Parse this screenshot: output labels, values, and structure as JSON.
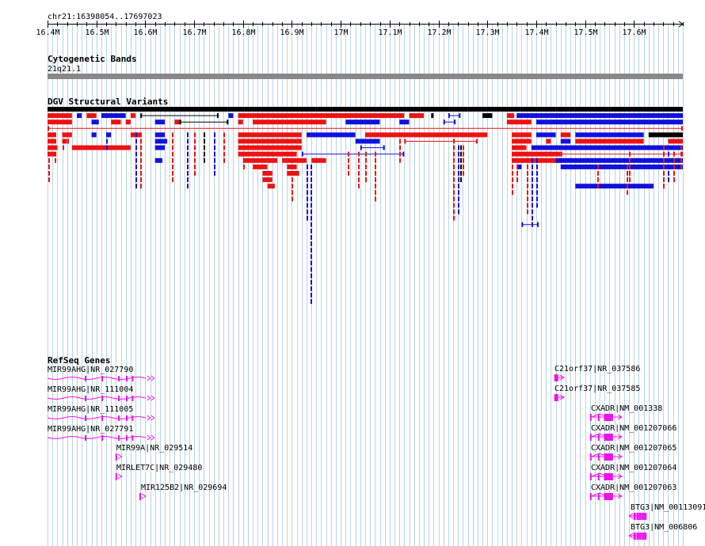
{
  "locus": "chr21:16398054..17697023",
  "ruler": {
    "start": 16.4,
    "end": 17.7,
    "ticks": [
      {
        "v": 16.4,
        "label": "16.4M"
      },
      {
        "v": 16.5,
        "label": "16.5M"
      },
      {
        "v": 16.6,
        "label": "16.6M"
      },
      {
        "v": 16.7,
        "label": "16.7M"
      },
      {
        "v": 16.8,
        "label": "16.8M"
      },
      {
        "v": 16.9,
        "label": "16.9M"
      },
      {
        "v": 17.0,
        "label": "17M"
      },
      {
        "v": 17.1,
        "label": "17.1M"
      },
      {
        "v": 17.2,
        "label": "17.2M"
      },
      {
        "v": 17.3,
        "label": "17.3M"
      },
      {
        "v": 17.4,
        "label": "17.4M"
      },
      {
        "v": 17.5,
        "label": "17.5M"
      },
      {
        "v": 17.6,
        "label": "17.6M"
      }
    ]
  },
  "tracks": {
    "cytoband": {
      "title": "Cytogenetic Bands",
      "band": "21q21.1"
    },
    "dgv": {
      "title": "DGV Structural Variants"
    },
    "refseq": {
      "title": "RefSeq Genes"
    }
  },
  "colors": {
    "loss": "#ee1111",
    "gain": "#1111dd",
    "other": "#000000",
    "gene": "#ee11ee",
    "grid": "#b8d4e4"
  },
  "genes": [
    {
      "label": "MIR99AHG|NR_027790",
      "start": 16.4,
      "end": 16.62,
      "kind": "wavy"
    },
    {
      "label": "MIR99AHG|NR_111004",
      "start": 16.4,
      "end": 16.62,
      "kind": "wavy"
    },
    {
      "label": "MIR99AHG|NR_111005",
      "start": 16.4,
      "end": 16.62,
      "kind": "wavy"
    },
    {
      "label": "MIR99AHG|NR_027791",
      "start": 16.4,
      "end": 16.62,
      "kind": "wavy"
    },
    {
      "label": "MIR99A|NR_029514",
      "start": 16.539,
      "end": 16.548,
      "kind": "small"
    },
    {
      "label": "MIRLET7C|NR_029480",
      "start": 16.539,
      "end": 16.548,
      "kind": "small"
    },
    {
      "label": "MIR125B2|NR_029694",
      "start": 16.588,
      "end": 16.597,
      "kind": "small"
    },
    {
      "label": "C21orf37|NR_037586",
      "start": 17.437,
      "end": 17.457,
      "kind": "short"
    },
    {
      "label": "C21orf37|NR_037585",
      "start": 17.437,
      "end": 17.457,
      "kind": "short"
    },
    {
      "label": "CXADR|NM_001338",
      "start": 17.51,
      "end": 17.575,
      "kind": "exons"
    },
    {
      "label": "CXADR|NM_001207066",
      "start": 17.51,
      "end": 17.575,
      "kind": "exons"
    },
    {
      "label": "CXADR|NM_001207065",
      "start": 17.51,
      "end": 17.575,
      "kind": "exons"
    },
    {
      "label": "CXADR|NM_001207064",
      "start": 17.51,
      "end": 17.575,
      "kind": "exons"
    },
    {
      "label": "CXADR|NM_001207063",
      "start": 17.51,
      "end": 17.575,
      "kind": "exons"
    },
    {
      "label": "BTG3|NM_00113091",
      "start": 17.59,
      "end": 17.626,
      "kind": "rev"
    },
    {
      "label": "BTG3|NM_006806",
      "start": 17.59,
      "end": 17.626,
      "kind": "rev"
    }
  ],
  "variants": [
    {
      "s": 16.4,
      "e": 17.7,
      "r": 0,
      "c": "other"
    },
    {
      "s": 16.4,
      "e": 16.45,
      "r": 1,
      "c": "loss"
    },
    {
      "s": 16.46,
      "e": 16.47,
      "r": 1,
      "c": "gain"
    },
    {
      "s": 16.48,
      "e": 16.5,
      "r": 1,
      "c": "loss"
    },
    {
      "s": 16.51,
      "e": 16.56,
      "r": 1,
      "c": "gain"
    },
    {
      "s": 16.57,
      "e": 16.58,
      "r": 1,
      "c": "loss"
    },
    {
      "s": 16.59,
      "e": 16.75,
      "r": 1,
      "c": "other",
      "thin": 1
    },
    {
      "s": 16.77,
      "e": 16.78,
      "r": 1,
      "c": "gain"
    },
    {
      "s": 16.79,
      "e": 17.13,
      "r": 1,
      "c": "loss"
    },
    {
      "s": 17.14,
      "e": 17.17,
      "r": 1,
      "c": "loss"
    },
    {
      "s": 17.185,
      "e": 17.19,
      "r": 1,
      "c": "other"
    },
    {
      "s": 17.22,
      "e": 17.245,
      "r": 1,
      "c": "gain",
      "thin": 1
    },
    {
      "s": 17.29,
      "e": 17.31,
      "r": 1,
      "c": "other"
    },
    {
      "s": 17.34,
      "e": 17.355,
      "r": 1,
      "c": "loss"
    },
    {
      "s": 17.36,
      "e": 17.43,
      "r": 1,
      "c": "gain"
    },
    {
      "s": 17.43,
      "e": 17.7,
      "r": 1,
      "c": "gain"
    },
    {
      "s": 16.4,
      "e": 16.45,
      "r": 2,
      "c": "loss"
    },
    {
      "s": 16.49,
      "e": 16.505,
      "r": 2,
      "c": "gain"
    },
    {
      "s": 16.53,
      "e": 16.55,
      "r": 2,
      "c": "loss"
    },
    {
      "s": 16.56,
      "e": 16.57,
      "r": 2,
      "c": "loss"
    },
    {
      "s": 16.62,
      "e": 16.64,
      "r": 2,
      "c": "gain"
    },
    {
      "s": 16.66,
      "e": 16.67,
      "r": 2,
      "c": "loss"
    },
    {
      "s": 16.67,
      "e": 16.77,
      "r": 2,
      "c": "other",
      "thin": 1
    },
    {
      "s": 16.79,
      "e": 16.8,
      "r": 2,
      "c": "loss"
    },
    {
      "s": 16.82,
      "e": 16.97,
      "r": 2,
      "c": "loss"
    },
    {
      "s": 17.01,
      "e": 17.08,
      "r": 2,
      "c": "gain"
    },
    {
      "s": 17.12,
      "e": 17.14,
      "r": 2,
      "c": "gain"
    },
    {
      "s": 17.21,
      "e": 17.235,
      "r": 2,
      "c": "gain",
      "thin": 1
    },
    {
      "s": 17.34,
      "e": 17.39,
      "r": 2,
      "c": "loss"
    },
    {
      "s": 17.4,
      "e": 17.7,
      "r": 2,
      "c": "gain"
    },
    {
      "s": 16.4,
      "e": 17.7,
      "r": 3,
      "c": "loss",
      "thin": 1
    },
    {
      "s": 16.4,
      "e": 16.415,
      "r": 4,
      "c": "loss"
    },
    {
      "s": 16.43,
      "e": 16.45,
      "r": 4,
      "c": "loss"
    },
    {
      "s": 16.49,
      "e": 16.5,
      "r": 4,
      "c": "gain"
    },
    {
      "s": 16.52,
      "e": 16.53,
      "r": 4,
      "c": "gain"
    },
    {
      "s": 16.57,
      "e": 16.59,
      "r": 4,
      "c": "loss"
    },
    {
      "s": 16.62,
      "e": 16.64,
      "r": 4,
      "c": "gain"
    },
    {
      "s": 16.79,
      "e": 16.92,
      "r": 4,
      "c": "loss"
    },
    {
      "s": 16.93,
      "e": 17.03,
      "r": 4,
      "c": "gain"
    },
    {
      "s": 17.05,
      "e": 17.3,
      "r": 4,
      "c": "loss"
    },
    {
      "s": 17.35,
      "e": 17.39,
      "r": 4,
      "c": "loss"
    },
    {
      "s": 17.4,
      "e": 17.44,
      "r": 4,
      "c": "gain"
    },
    {
      "s": 17.45,
      "e": 17.47,
      "r": 4,
      "c": "loss"
    },
    {
      "s": 17.48,
      "e": 17.62,
      "r": 4,
      "c": "gain"
    },
    {
      "s": 17.63,
      "e": 17.7,
      "r": 4,
      "c": "other"
    },
    {
      "s": 16.4,
      "e": 16.415,
      "r": 5,
      "c": "loss"
    },
    {
      "s": 16.43,
      "e": 16.44,
      "r": 5,
      "c": "loss"
    },
    {
      "s": 16.62,
      "e": 16.645,
      "r": 5,
      "c": "gain"
    },
    {
      "s": 16.79,
      "e": 16.92,
      "r": 5,
      "c": "loss"
    },
    {
      "s": 17.03,
      "e": 17.08,
      "r": 5,
      "c": "gain"
    },
    {
      "s": 17.13,
      "e": 17.28,
      "r": 5,
      "c": "loss",
      "thin": 1
    },
    {
      "s": 17.35,
      "e": 17.39,
      "r": 5,
      "c": "loss"
    },
    {
      "s": 17.42,
      "e": 17.43,
      "r": 5,
      "c": "loss"
    },
    {
      "s": 17.45,
      "e": 17.47,
      "r": 5,
      "c": "gain"
    },
    {
      "s": 17.48,
      "e": 17.62,
      "r": 5,
      "c": "loss"
    },
    {
      "s": 17.67,
      "e": 17.7,
      "r": 5,
      "c": "loss"
    },
    {
      "s": 16.4,
      "e": 16.42,
      "r": 6,
      "c": "loss"
    },
    {
      "s": 16.45,
      "e": 16.57,
      "r": 6,
      "c": "loss"
    },
    {
      "s": 16.62,
      "e": 16.64,
      "r": 6,
      "c": "gain"
    },
    {
      "s": 16.79,
      "e": 16.92,
      "r": 6,
      "c": "loss"
    },
    {
      "s": 17.04,
      "e": 17.09,
      "r": 6,
      "c": "gain",
      "thin": 1
    },
    {
      "s": 17.35,
      "e": 17.38,
      "r": 6,
      "c": "loss"
    },
    {
      "s": 17.39,
      "e": 17.7,
      "r": 6,
      "c": "gain"
    },
    {
      "s": 16.4,
      "e": 16.415,
      "r": 7,
      "c": "loss"
    },
    {
      "s": 16.79,
      "e": 16.91,
      "r": 7,
      "c": "loss"
    },
    {
      "s": 16.92,
      "e": 17.13,
      "r": 7,
      "c": "gain",
      "thin": 1
    },
    {
      "s": 17.35,
      "e": 17.45,
      "r": 7,
      "c": "loss"
    },
    {
      "s": 17.45,
      "e": 17.7,
      "r": 7,
      "c": "loss",
      "thin": 1
    },
    {
      "s": 16.62,
      "e": 16.635,
      "r": 8,
      "c": "gain"
    },
    {
      "s": 16.8,
      "e": 16.87,
      "r": 8,
      "c": "loss"
    },
    {
      "s": 16.88,
      "e": 16.93,
      "r": 8,
      "c": "loss"
    },
    {
      "s": 16.94,
      "e": 16.97,
      "r": 8,
      "c": "loss"
    },
    {
      "s": 17.35,
      "e": 17.45,
      "r": 8,
      "c": "loss"
    },
    {
      "s": 17.44,
      "e": 17.7,
      "r": 8,
      "c": "gain"
    },
    {
      "s": 16.82,
      "e": 16.85,
      "r": 9,
      "c": "loss"
    },
    {
      "s": 16.89,
      "e": 16.91,
      "r": 9,
      "c": "loss"
    },
    {
      "s": 17.36,
      "e": 17.37,
      "r": 9,
      "c": "gain"
    },
    {
      "s": 17.45,
      "e": 17.7,
      "r": 9,
      "c": "gain"
    },
    {
      "s": 16.84,
      "e": 16.86,
      "r": 10,
      "c": "loss"
    },
    {
      "s": 16.89,
      "e": 16.915,
      "r": 10,
      "c": "loss"
    },
    {
      "s": 16.84,
      "e": 16.86,
      "r": 11,
      "c": "loss"
    },
    {
      "s": 16.85,
      "e": 16.865,
      "r": 12,
      "c": "loss"
    },
    {
      "s": 17.48,
      "e": 17.64,
      "r": 12,
      "c": "gain"
    },
    {
      "s": 17.37,
      "e": 17.405,
      "r": 18,
      "c": "gain",
      "thin": 1
    }
  ],
  "stalks": [
    {
      "v": 16.402,
      "r0": 4,
      "r1": 11,
      "c": "loss"
    },
    {
      "v": 16.415,
      "r0": 4,
      "r1": 8,
      "c": "loss"
    },
    {
      "v": 16.43,
      "r0": 4,
      "r1": 6,
      "c": "loss"
    },
    {
      "v": 16.44,
      "r0": 4,
      "r1": 5,
      "c": "loss"
    },
    {
      "v": 16.58,
      "r0": 4,
      "r1": 12,
      "c": "gain"
    },
    {
      "v": 16.59,
      "r0": 4,
      "r1": 12,
      "c": "loss"
    },
    {
      "v": 16.52,
      "r0": 4,
      "r1": 6,
      "c": "gain"
    },
    {
      "v": 16.655,
      "r0": 4,
      "r1": 11,
      "c": "loss"
    },
    {
      "v": 16.685,
      "r0": 4,
      "r1": 12,
      "c": "gain"
    },
    {
      "v": 16.7,
      "r0": 4,
      "r1": 10,
      "c": "loss"
    },
    {
      "v": 16.72,
      "r0": 4,
      "r1": 8,
      "c": "other"
    },
    {
      "v": 16.74,
      "r0": 4,
      "r1": 10,
      "c": "gain"
    },
    {
      "v": 16.76,
      "r0": 4,
      "r1": 8,
      "c": "loss"
    },
    {
      "v": 16.8,
      "r0": 4,
      "r1": 9,
      "c": "loss"
    },
    {
      "v": 16.9,
      "r0": 8,
      "r1": 14,
      "c": "loss"
    },
    {
      "v": 16.93,
      "r0": 9,
      "r1": 17,
      "c": "gain"
    },
    {
      "v": 16.938,
      "r0": 9,
      "r1": 30,
      "c": "gain"
    },
    {
      "v": 17.015,
      "r0": 7,
      "r1": 10,
      "c": "loss"
    },
    {
      "v": 17.035,
      "r0": 7,
      "r1": 12,
      "c": "loss"
    },
    {
      "v": 17.05,
      "r0": 7,
      "r1": 11,
      "c": "loss"
    },
    {
      "v": 17.07,
      "r0": 7,
      "r1": 14,
      "c": "loss"
    },
    {
      "v": 17.12,
      "r0": 5,
      "r1": 8,
      "c": "loss"
    },
    {
      "v": 17.23,
      "r0": 5,
      "r1": 17,
      "c": "loss"
    },
    {
      "v": 17.24,
      "r0": 6,
      "r1": 16,
      "c": "gain"
    },
    {
      "v": 17.245,
      "r0": 6,
      "r1": 11,
      "c": "other"
    },
    {
      "v": 17.25,
      "r0": 6,
      "r1": 10,
      "c": "loss"
    },
    {
      "v": 17.35,
      "r0": 8,
      "r1": 13,
      "c": "loss"
    },
    {
      "v": 17.36,
      "r0": 8,
      "r1": 11,
      "c": "loss"
    },
    {
      "v": 17.38,
      "r0": 8,
      "r1": 16,
      "c": "loss"
    },
    {
      "v": 17.39,
      "r0": 8,
      "r1": 18,
      "c": "gain"
    },
    {
      "v": 17.4,
      "r0": 8,
      "r1": 15,
      "c": "gain"
    },
    {
      "v": 17.525,
      "r0": 9,
      "r1": 12,
      "c": "loss"
    },
    {
      "v": 17.585,
      "r0": 9,
      "r1": 13,
      "c": "loss"
    },
    {
      "v": 17.59,
      "r0": 7,
      "r1": 11,
      "c": "loss"
    },
    {
      "v": 17.66,
      "r0": 6,
      "r1": 12,
      "c": "loss"
    },
    {
      "v": 17.67,
      "r0": 7,
      "r1": 11,
      "c": "gain"
    },
    {
      "v": 17.68,
      "r0": 7,
      "r1": 11,
      "c": "loss"
    },
    {
      "v": 17.695,
      "r0": 5,
      "r1": 9,
      "c": "loss"
    }
  ]
}
